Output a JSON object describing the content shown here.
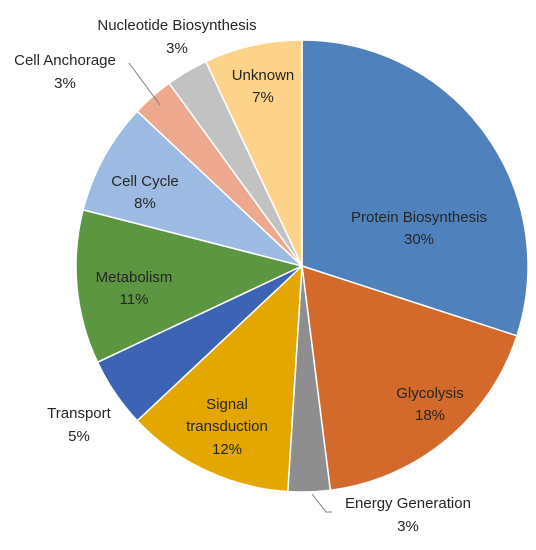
{
  "chart_data": {
    "type": "pie",
    "title": "",
    "start_angle_deg": 0,
    "direction": "clockwise",
    "slices": [
      {
        "label": "Protein Biosynthesis",
        "value": 30,
        "value_label": "30%",
        "color": "#4f81bd"
      },
      {
        "label": "Glycolysis",
        "value": 18,
        "value_label": "18%",
        "color": "#d3692a"
      },
      {
        "label": "Energy Generation",
        "value": 3,
        "value_label": "3%",
        "color": "#8e8e8e"
      },
      {
        "label": "Signal transduction",
        "value": 12,
        "value_label": "12%",
        "color": "#e3a700"
      },
      {
        "label": "Transport",
        "value": 5,
        "value_label": "5%",
        "color": "#3c63b4"
      },
      {
        "label": "Metabolism",
        "value": 11,
        "value_label": "11%",
        "color": "#5c9640"
      },
      {
        "label": "Cell Cycle",
        "value": 8,
        "value_label": "8%",
        "color": "#9dbbe2"
      },
      {
        "label": "Cell Anchorage",
        "value": 3,
        "value_label": "3%",
        "color": "#eea88e"
      },
      {
        "label": "Nucleotide Biosynthesis",
        "value": 3,
        "value_label": "3%",
        "color": "#c2c2c2"
      },
      {
        "label": "Unknown",
        "value": 7,
        "value_label": "7%",
        "color": "#fdd289"
      }
    ]
  }
}
